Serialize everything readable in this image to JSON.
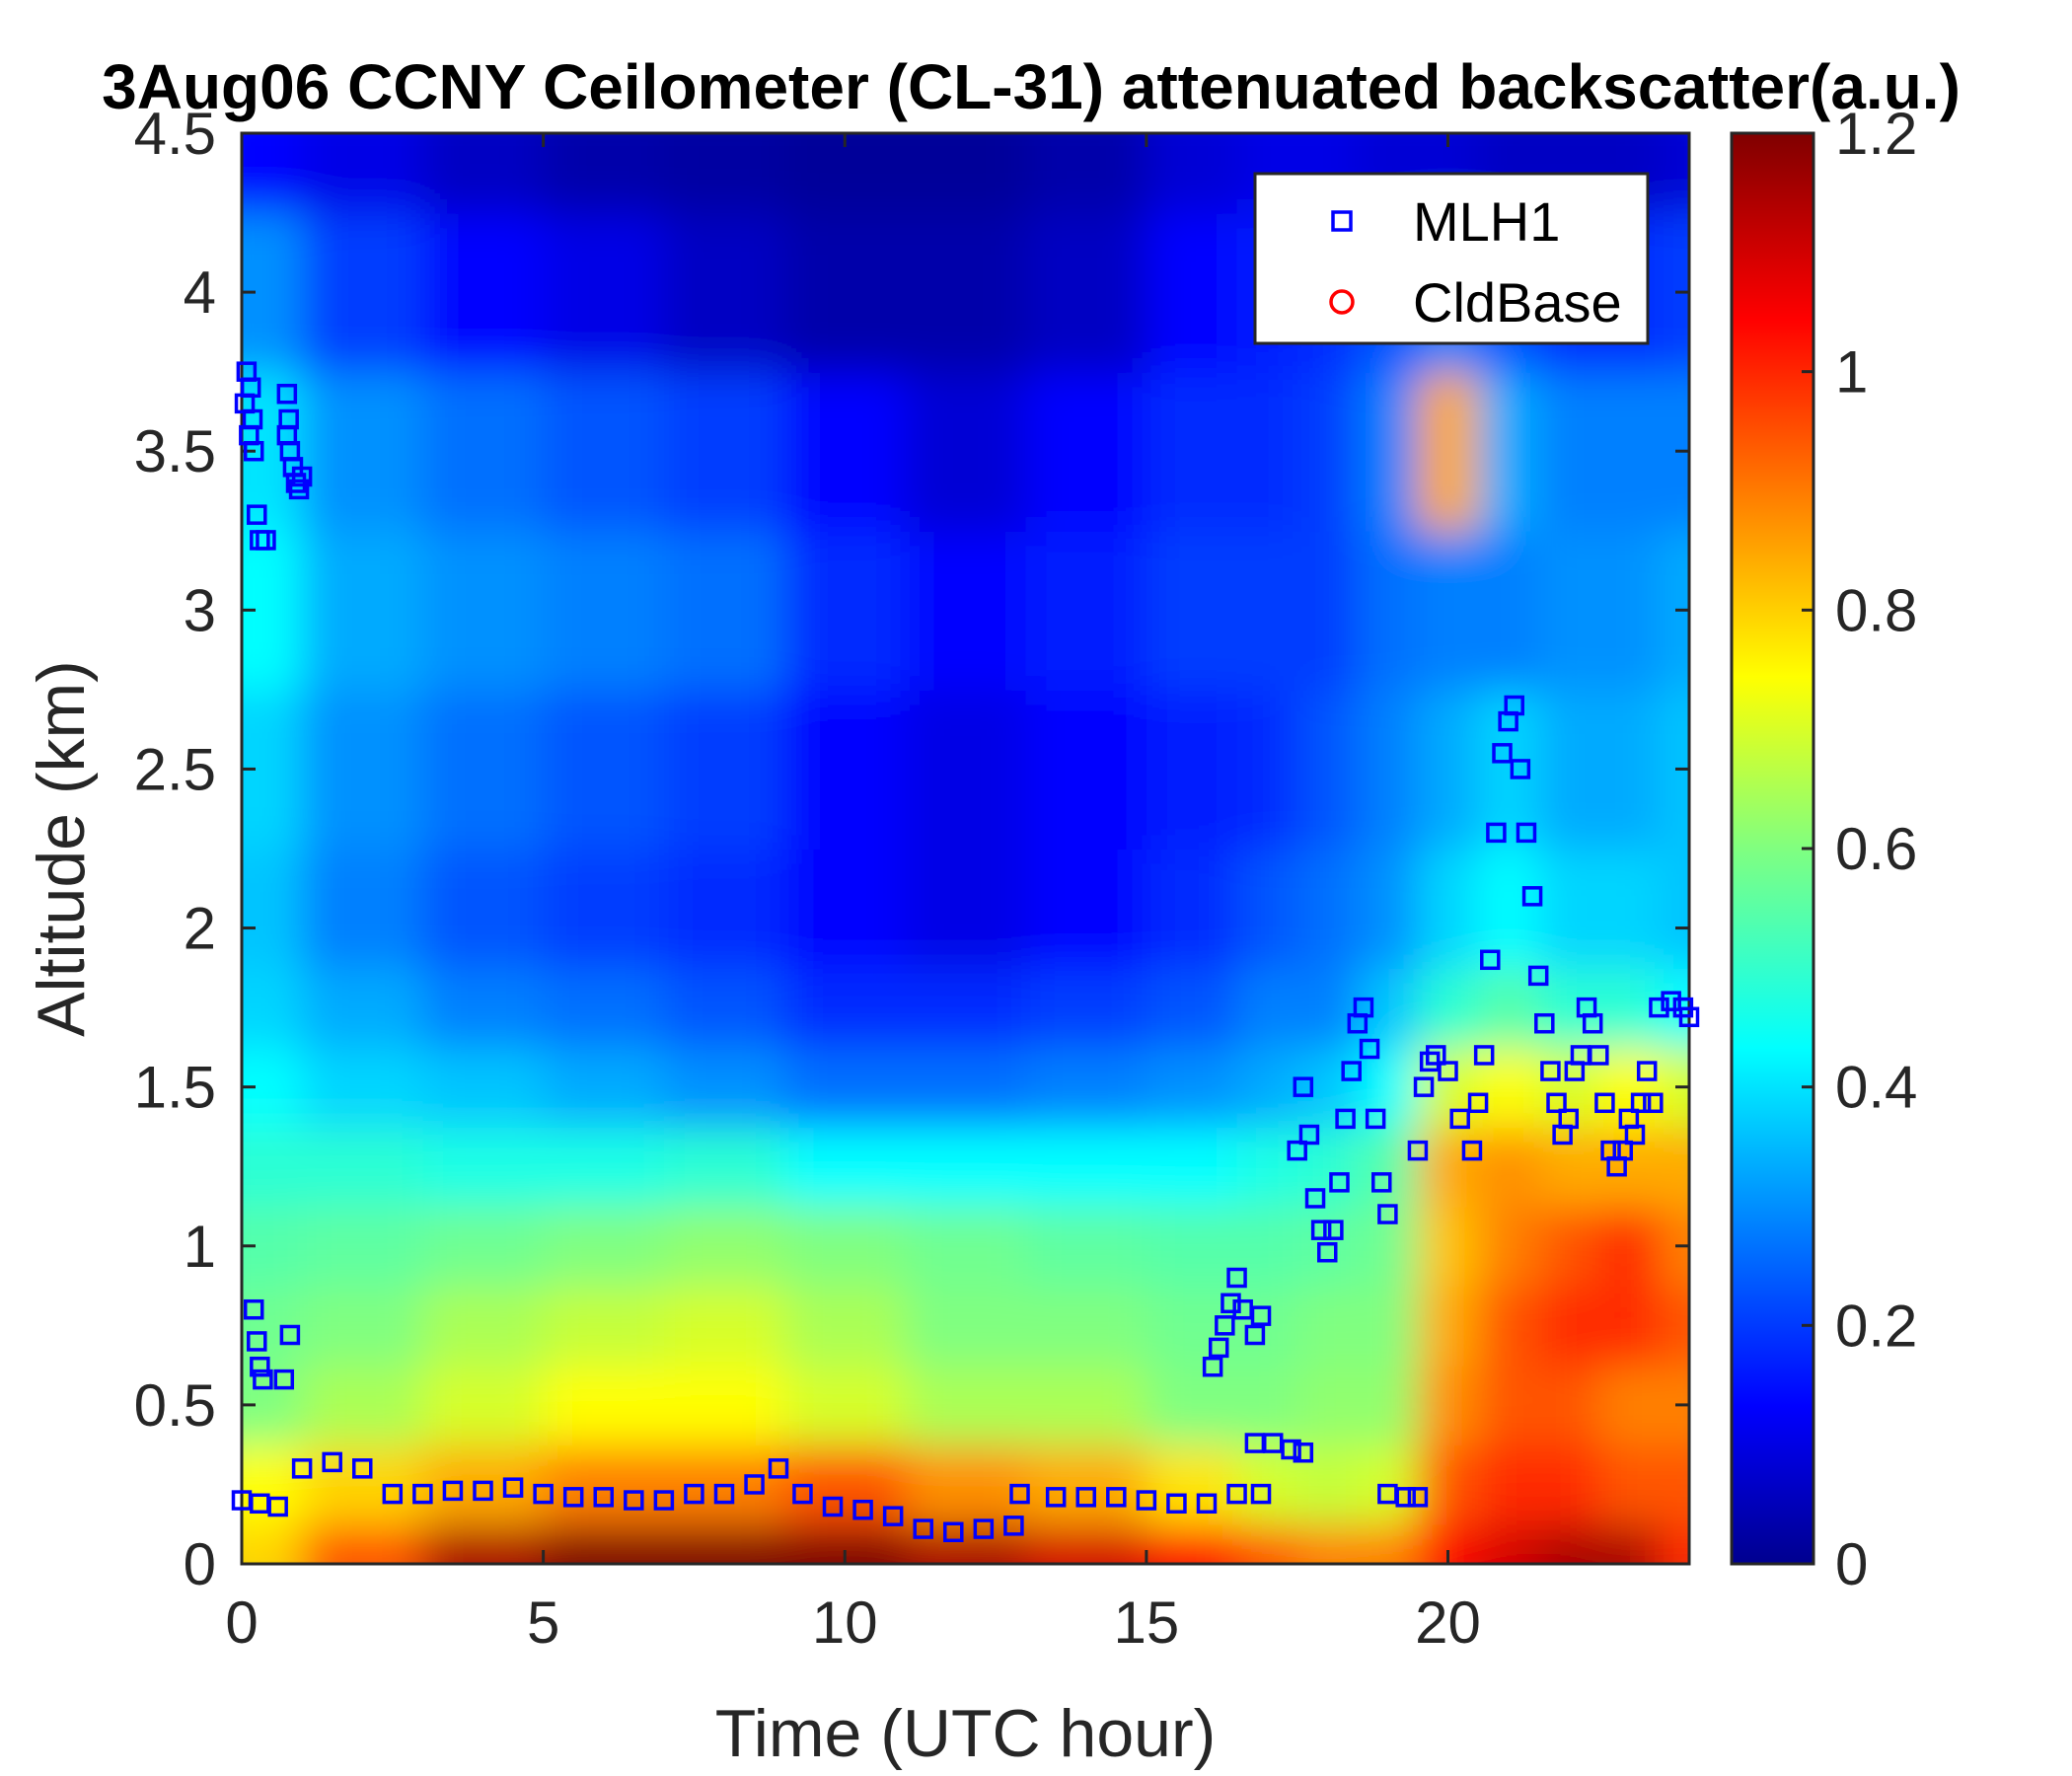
{
  "chart_data": {
    "type": "heatmap",
    "title": "3Aug06 CCNY Ceilometer (CL-31) attenuated backscatter(a.u.)",
    "xlabel": "Time (UTC hour)",
    "ylabel": "Altitude (km)",
    "xlim": [
      0,
      24
    ],
    "ylim": [
      0,
      4.5
    ],
    "x_ticks": [
      "0",
      "5",
      "10",
      "15",
      "20"
    ],
    "y_ticks": [
      "0",
      "0.5",
      "1",
      "1.5",
      "2",
      "2.5",
      "3",
      "3.5",
      "4",
      "4.5"
    ],
    "colorbar": {
      "colormap": "jet",
      "range": [
        0,
        1.2
      ],
      "ticks": [
        "0",
        "0.2",
        "0.4",
        "0.6",
        "0.8",
        "1",
        "1.2"
      ]
    },
    "legend": {
      "placement": "top-right",
      "entries": [
        {
          "label": "MLH1",
          "marker": "square",
          "color": "#0000ff"
        },
        {
          "label": "CldBase",
          "marker": "circle",
          "color": "#ff0000"
        }
      ]
    },
    "series": [
      {
        "name": "MLH1",
        "marker": "square",
        "color": "#0000ff",
        "points": [
          [
            0.0,
            0.2
          ],
          [
            0.3,
            0.19
          ],
          [
            0.6,
            0.18
          ],
          [
            0.05,
            3.65
          ],
          [
            0.08,
            3.75
          ],
          [
            0.12,
            3.55
          ],
          [
            0.15,
            3.7
          ],
          [
            0.18,
            3.6
          ],
          [
            0.2,
            3.5
          ],
          [
            0.25,
            3.3
          ],
          [
            0.3,
            3.22
          ],
          [
            0.4,
            3.22
          ],
          [
            0.75,
            3.55
          ],
          [
            0.8,
            3.5
          ],
          [
            0.85,
            3.45
          ],
          [
            0.9,
            3.4
          ],
          [
            0.95,
            3.38
          ],
          [
            1.0,
            3.42
          ],
          [
            0.75,
            3.68
          ],
          [
            0.78,
            3.6
          ],
          [
            0.2,
            0.8
          ],
          [
            0.25,
            0.7
          ],
          [
            0.3,
            0.62
          ],
          [
            0.35,
            0.58
          ],
          [
            0.7,
            0.58
          ],
          [
            0.8,
            0.72
          ],
          [
            1.0,
            0.3
          ],
          [
            1.5,
            0.32
          ],
          [
            2.0,
            0.3
          ],
          [
            2.5,
            0.22
          ],
          [
            3.0,
            0.22
          ],
          [
            3.5,
            0.23
          ],
          [
            4.0,
            0.23
          ],
          [
            4.5,
            0.24
          ],
          [
            5.0,
            0.22
          ],
          [
            5.5,
            0.21
          ],
          [
            6.0,
            0.21
          ],
          [
            6.5,
            0.2
          ],
          [
            7.0,
            0.2
          ],
          [
            7.5,
            0.22
          ],
          [
            8.0,
            0.22
          ],
          [
            8.5,
            0.25
          ],
          [
            8.9,
            0.3
          ],
          [
            9.3,
            0.22
          ],
          [
            9.8,
            0.18
          ],
          [
            10.3,
            0.17
          ],
          [
            10.8,
            0.15
          ],
          [
            11.3,
            0.11
          ],
          [
            11.8,
            0.1
          ],
          [
            12.3,
            0.11
          ],
          [
            12.8,
            0.12
          ],
          [
            12.9,
            0.22
          ],
          [
            13.5,
            0.21
          ],
          [
            14.0,
            0.21
          ],
          [
            14.5,
            0.21
          ],
          [
            15.0,
            0.2
          ],
          [
            15.5,
            0.19
          ],
          [
            16.0,
            0.19
          ],
          [
            16.1,
            0.62
          ],
          [
            16.2,
            0.68
          ],
          [
            16.3,
            0.75
          ],
          [
            16.4,
            0.82
          ],
          [
            16.5,
            0.9
          ],
          [
            16.6,
            0.8
          ],
          [
            16.8,
            0.72
          ],
          [
            16.9,
            0.78
          ],
          [
            16.5,
            0.22
          ],
          [
            16.9,
            0.22
          ],
          [
            16.8,
            0.38
          ],
          [
            17.1,
            0.38
          ],
          [
            17.4,
            0.36
          ],
          [
            17.6,
            0.35
          ],
          [
            17.5,
            1.3
          ],
          [
            17.6,
            1.5
          ],
          [
            17.7,
            1.35
          ],
          [
            17.8,
            1.15
          ],
          [
            17.9,
            1.05
          ],
          [
            18.0,
            0.98
          ],
          [
            18.1,
            1.05
          ],
          [
            18.2,
            1.2
          ],
          [
            18.3,
            1.4
          ],
          [
            18.4,
            1.55
          ],
          [
            18.5,
            1.7
          ],
          [
            18.6,
            1.75
          ],
          [
            18.7,
            1.62
          ],
          [
            18.8,
            1.4
          ],
          [
            18.9,
            1.2
          ],
          [
            19.0,
            1.1
          ],
          [
            19.0,
            0.22
          ],
          [
            19.3,
            0.21
          ],
          [
            19.5,
            0.21
          ],
          [
            19.5,
            1.3
          ],
          [
            19.6,
            1.5
          ],
          [
            19.7,
            1.58
          ],
          [
            19.8,
            1.6
          ],
          [
            20.0,
            1.55
          ],
          [
            20.2,
            1.4
          ],
          [
            20.4,
            1.3
          ],
          [
            20.5,
            1.45
          ],
          [
            20.6,
            1.6
          ],
          [
            20.7,
            1.9
          ],
          [
            20.8,
            2.3
          ],
          [
            20.9,
            2.55
          ],
          [
            21.0,
            2.65
          ],
          [
            21.1,
            2.7
          ],
          [
            21.2,
            2.5
          ],
          [
            21.3,
            2.3
          ],
          [
            21.4,
            2.1
          ],
          [
            21.5,
            1.85
          ],
          [
            21.6,
            1.7
          ],
          [
            21.7,
            1.55
          ],
          [
            21.8,
            1.45
          ],
          [
            21.9,
            1.35
          ],
          [
            22.0,
            1.4
          ],
          [
            22.1,
            1.55
          ],
          [
            22.2,
            1.6
          ],
          [
            22.3,
            1.75
          ],
          [
            22.4,
            1.7
          ],
          [
            22.5,
            1.6
          ],
          [
            22.6,
            1.45
          ],
          [
            22.7,
            1.3
          ],
          [
            22.8,
            1.25
          ],
          [
            22.9,
            1.3
          ],
          [
            23.0,
            1.4
          ],
          [
            23.1,
            1.35
          ],
          [
            23.2,
            1.45
          ],
          [
            23.3,
            1.55
          ],
          [
            23.4,
            1.45
          ],
          [
            23.5,
            1.75
          ],
          [
            23.7,
            1.77
          ],
          [
            23.9,
            1.75
          ],
          [
            24.0,
            1.72
          ]
        ]
      },
      {
        "name": "CldBase",
        "marker": "circle",
        "color": "#ff0000",
        "points": []
      }
    ],
    "background_field": {
      "description": "attenuated backscatter shaded with jet colormap",
      "time": [
        0,
        2,
        4,
        6,
        8,
        10,
        12,
        14,
        16,
        17,
        18,
        19,
        20,
        21,
        22,
        23,
        24
      ],
      "altitude": [
        0,
        0.25,
        0.5,
        0.75,
        1.0,
        1.25,
        1.5,
        1.75,
        2.0,
        2.5,
        3.0,
        3.5,
        4.0,
        4.5
      ],
      "values": [
        [
          0.8,
          0.95,
          1.15,
          1.2,
          1.2,
          1.2,
          1.15,
          1.1,
          1.05,
          0.95,
          0.9,
          0.9,
          1.05,
          1.1,
          1.15,
          1.15,
          1.0
        ],
        [
          0.75,
          0.8,
          0.85,
          0.9,
          0.9,
          0.95,
          0.88,
          0.85,
          0.78,
          0.7,
          0.68,
          0.7,
          0.95,
          1.0,
          1.0,
          0.95,
          0.95
        ],
        [
          0.6,
          0.65,
          0.7,
          0.75,
          0.75,
          0.7,
          0.65,
          0.65,
          0.6,
          0.6,
          0.62,
          0.62,
          0.88,
          0.95,
          0.95,
          0.9,
          0.9
        ],
        [
          0.58,
          0.6,
          0.65,
          0.68,
          0.7,
          0.65,
          0.6,
          0.6,
          0.58,
          0.58,
          0.6,
          0.6,
          0.85,
          0.95,
          1.0,
          1.0,
          0.95
        ],
        [
          0.55,
          0.56,
          0.58,
          0.6,
          0.62,
          0.6,
          0.58,
          0.56,
          0.55,
          0.55,
          0.56,
          0.58,
          0.82,
          0.9,
          0.95,
          1.0,
          0.9
        ],
        [
          0.5,
          0.5,
          0.48,
          0.48,
          0.5,
          0.45,
          0.45,
          0.45,
          0.45,
          0.48,
          0.5,
          0.55,
          0.85,
          0.88,
          0.85,
          0.85,
          0.85
        ],
        [
          0.45,
          0.4,
          0.38,
          0.35,
          0.32,
          0.28,
          0.28,
          0.3,
          0.32,
          0.35,
          0.38,
          0.45,
          0.7,
          0.75,
          0.7,
          0.75,
          0.7
        ],
        [
          0.4,
          0.35,
          0.3,
          0.28,
          0.25,
          0.2,
          0.2,
          0.22,
          0.25,
          0.3,
          0.3,
          0.38,
          0.5,
          0.55,
          0.5,
          0.5,
          0.45
        ],
        [
          0.38,
          0.3,
          0.25,
          0.22,
          0.2,
          0.15,
          0.12,
          0.15,
          0.2,
          0.25,
          0.28,
          0.32,
          0.4,
          0.45,
          0.4,
          0.4,
          0.38
        ],
        [
          0.4,
          0.32,
          0.28,
          0.25,
          0.22,
          0.15,
          0.12,
          0.15,
          0.18,
          0.2,
          0.25,
          0.3,
          0.35,
          0.4,
          0.35,
          0.35,
          0.38
        ],
        [
          0.45,
          0.35,
          0.32,
          0.3,
          0.28,
          0.2,
          0.15,
          0.18,
          0.22,
          0.22,
          0.22,
          0.28,
          0.3,
          0.3,
          0.32,
          0.32,
          0.35
        ],
        [
          0.42,
          0.32,
          0.28,
          0.25,
          0.22,
          0.15,
          0.1,
          0.15,
          0.2,
          0.2,
          0.22,
          0.3,
          0.85,
          0.35,
          0.3,
          0.3,
          0.3
        ],
        [
          0.32,
          0.22,
          0.15,
          0.12,
          0.08,
          0.05,
          0.05,
          0.08,
          0.15,
          0.18,
          0.2,
          0.25,
          0.3,
          0.25,
          0.2,
          0.2,
          0.22
        ],
        [
          0.15,
          0.12,
          0.08,
          0.05,
          0.04,
          0.03,
          0.03,
          0.05,
          0.1,
          0.12,
          0.12,
          0.1,
          0.1,
          0.08,
          0.08,
          0.08,
          0.1
        ]
      ]
    }
  }
}
